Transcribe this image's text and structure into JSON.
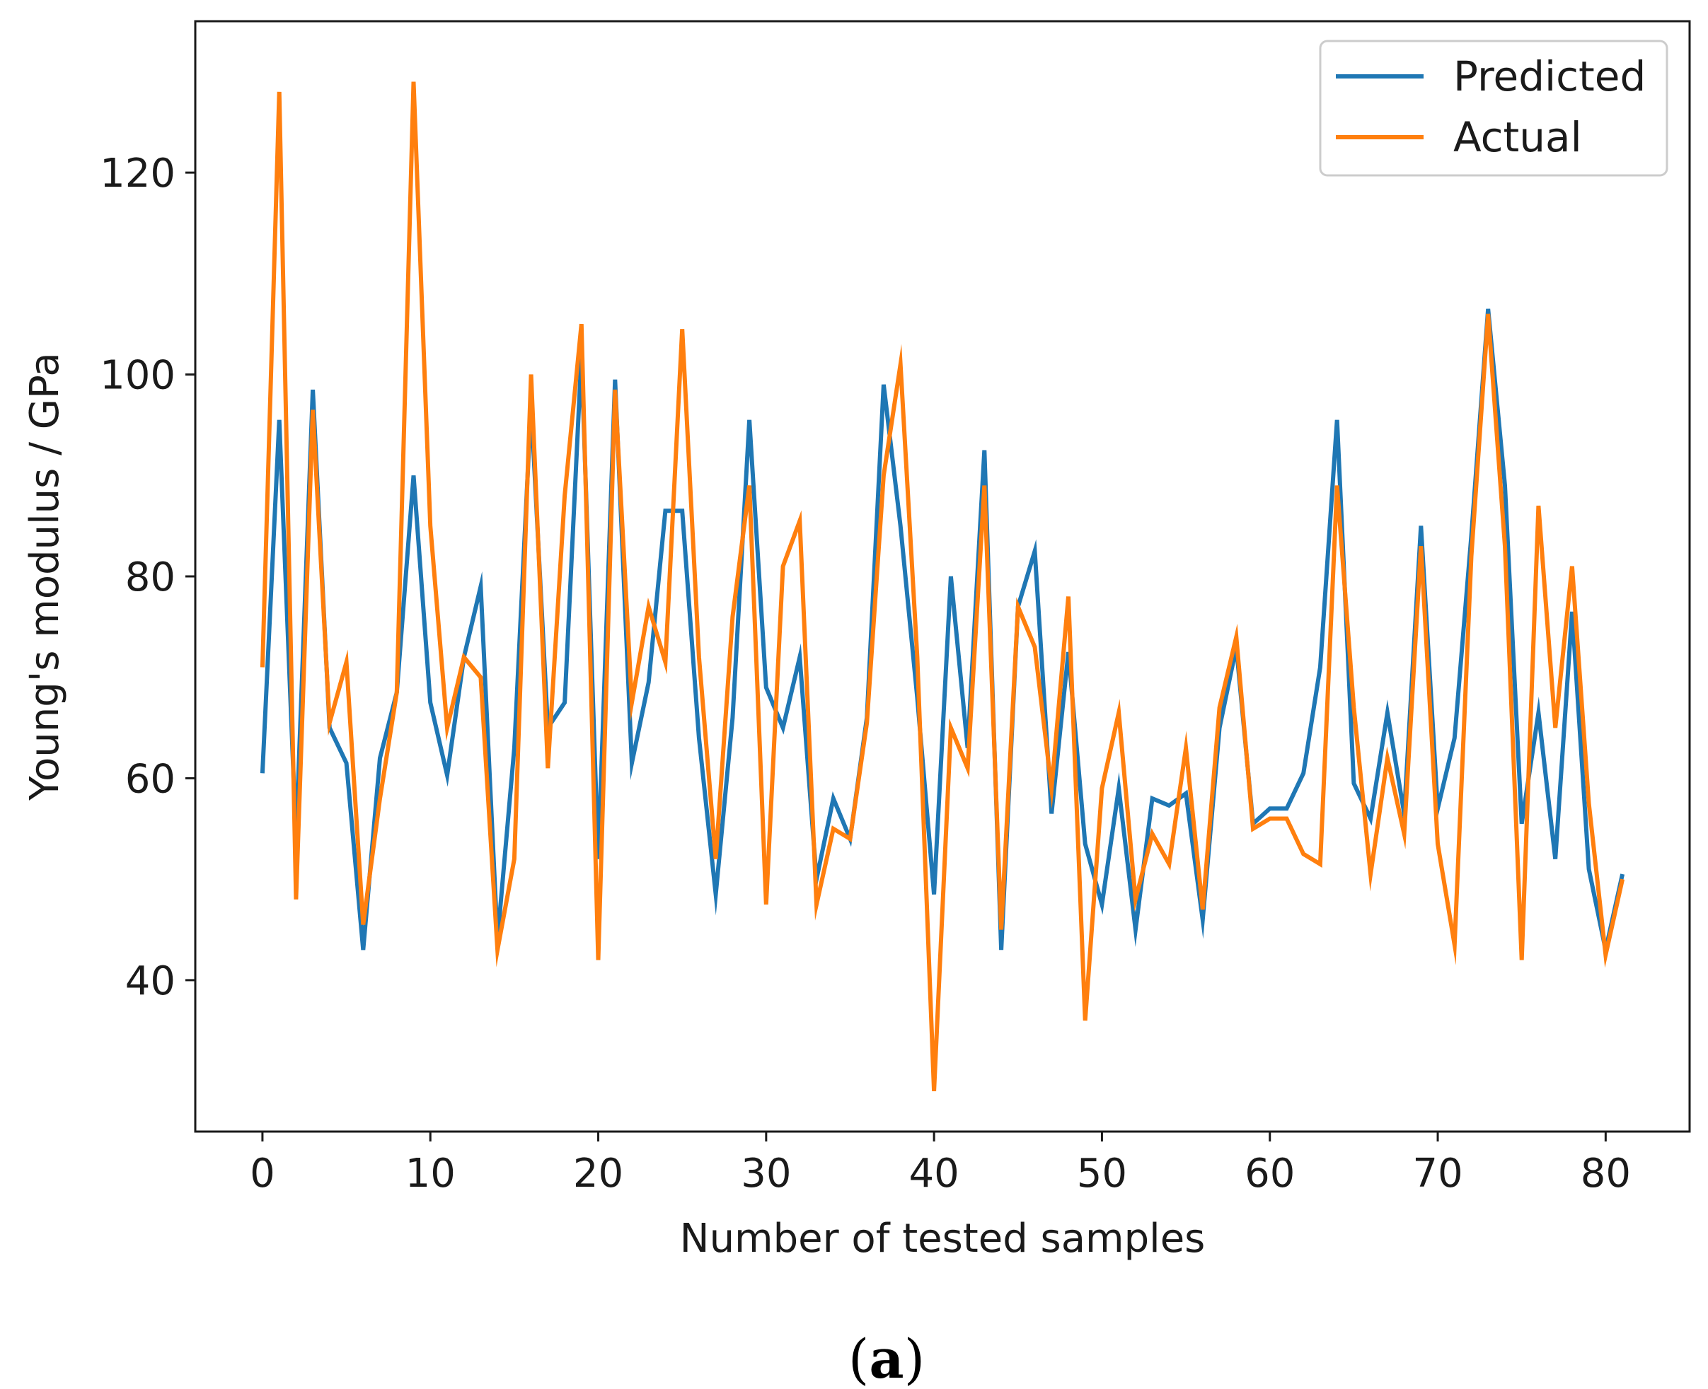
{
  "chart_data": {
    "type": "line",
    "title": "",
    "xlabel": "Number of tested samples",
    "ylabel": "Young's modulus / GPa",
    "xlim": [
      -4,
      85
    ],
    "ylim": [
      25,
      135
    ],
    "x_ticks": [
      0,
      10,
      20,
      30,
      40,
      50,
      60,
      70,
      80
    ],
    "y_ticks": [
      40,
      60,
      80,
      100,
      120
    ],
    "legend_position": "top-right",
    "series": [
      {
        "name": "Predicted",
        "color": "#1f77b4",
        "values": [
          60.5,
          95.5,
          54.0,
          98.5,
          65.0,
          61.5,
          43.0,
          62.0,
          68.5,
          90.0,
          67.5,
          60.3,
          72.0,
          79.0,
          44.0,
          63.0,
          97.0,
          65.0,
          67.5,
          102.0,
          52.0,
          99.5,
          61.5,
          69.5,
          86.5,
          86.5,
          64.0,
          48.5,
          66.0,
          95.5,
          69.0,
          65.0,
          72.0,
          50.0,
          58.0,
          54.0,
          66.0,
          99.0,
          85.0,
          68.0,
          48.5,
          80.0,
          63.0,
          92.5,
          43.0,
          77.0,
          82.5,
          56.5,
          72.5,
          53.5,
          47.5,
          59.0,
          45.0,
          58.0,
          57.3,
          58.5,
          46.0,
          65.0,
          73.0,
          55.5,
          57.0,
          57.0,
          60.5,
          71.0,
          95.5,
          59.5,
          56.0,
          66.5,
          56.5,
          85.0,
          57.0,
          64.0,
          84.0,
          106.5,
          89.0,
          55.5,
          66.5,
          52.0,
          76.5,
          51.0,
          43.0,
          50.5
        ]
      },
      {
        "name": "Actual",
        "color": "#ff7f0e",
        "values": [
          71.0,
          128.0,
          48.0,
          96.5,
          65.5,
          71.5,
          45.5,
          58.0,
          68.5,
          129.0,
          85.0,
          65.0,
          72.0,
          70.0,
          43.0,
          52.0,
          100.0,
          61.0,
          88.0,
          105.0,
          42.0,
          98.5,
          67.5,
          77.0,
          71.5,
          104.5,
          72.0,
          52.0,
          76.0,
          89.0,
          47.5,
          81.0,
          85.5,
          47.5,
          55.0,
          54.0,
          65.5,
          90.0,
          101.0,
          72.0,
          29.0,
          65.0,
          61.0,
          89.0,
          45.0,
          77.0,
          73.0,
          59.0,
          78.0,
          36.0,
          59.0,
          66.5,
          48.0,
          54.5,
          51.5,
          63.0,
          47.0,
          67.0,
          74.0,
          55.0,
          56.0,
          56.0,
          52.5,
          51.5,
          89.0,
          67.0,
          50.5,
          62.0,
          54.5,
          83.0,
          53.5,
          43.5,
          82.0,
          106.0,
          83.0,
          42.0,
          87.0,
          65.0,
          81.0,
          57.5,
          42.5,
          50.0
        ]
      }
    ]
  },
  "caption": {
    "open": "(",
    "letter": "a",
    "close": ")"
  }
}
